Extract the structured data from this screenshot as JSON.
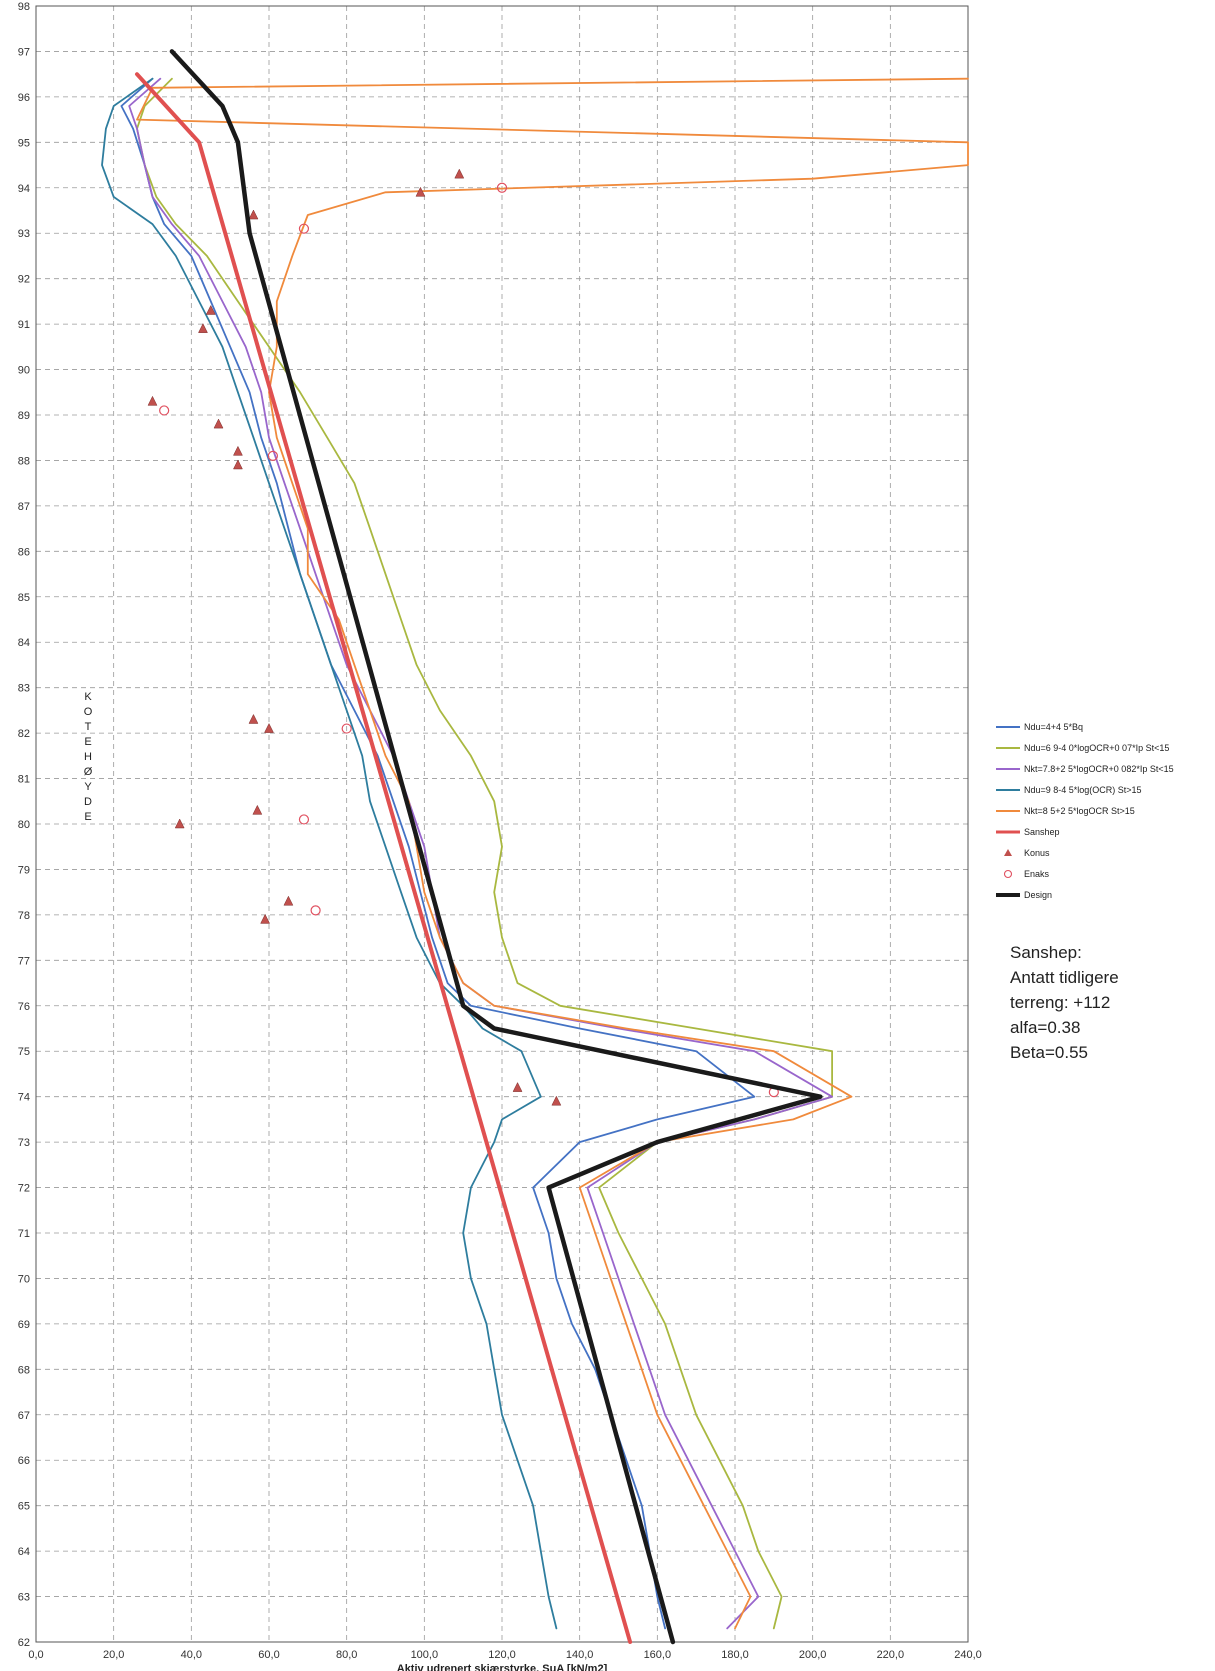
{
  "chart_data": {
    "type": "line",
    "title": "",
    "xlabel": "Aktiv udrenert skjærstyrke, SuA     [kN/m2]",
    "ylabel": "KOTEHØYDE",
    "xlim": [
      0,
      240
    ],
    "ylim": [
      62,
      98
    ],
    "x_ticks": [
      0,
      20,
      40,
      60,
      80,
      100,
      120,
      140,
      160,
      180,
      200,
      220,
      240
    ],
    "x_tick_labels": [
      "0,0",
      "20,0",
      "40,0",
      "60,0",
      "80,0",
      "100,0",
      "120,0",
      "140,0",
      "160,0",
      "180,0",
      "200,0",
      "220,0",
      "240,0"
    ],
    "y_ticks": [
      62,
      63,
      64,
      65,
      66,
      67,
      68,
      69,
      70,
      71,
      72,
      73,
      74,
      75,
      76,
      77,
      78,
      79,
      80,
      81,
      82,
      83,
      84,
      85,
      86,
      87,
      88,
      89,
      90,
      91,
      92,
      93,
      94,
      95,
      96,
      97,
      98
    ],
    "grid": true,
    "legend_position": "right",
    "series": [
      {
        "name": "Ndu=4+4 5*Bq",
        "color": "#4472c4",
        "marker": "none",
        "points": [
          [
            30,
            96.4
          ],
          [
            22,
            95.8
          ],
          [
            25,
            95.3
          ],
          [
            28,
            94.5
          ],
          [
            30,
            93.8
          ],
          [
            33,
            93.2
          ],
          [
            40,
            92.5
          ],
          [
            45,
            91.5
          ],
          [
            50,
            90.5
          ],
          [
            55,
            89.5
          ],
          [
            58,
            88.5
          ],
          [
            62,
            87.5
          ],
          [
            65,
            86.5
          ],
          [
            68,
            85.5
          ],
          [
            72,
            84.5
          ],
          [
            76,
            83.5
          ],
          [
            82,
            82.5
          ],
          [
            88,
            81.5
          ],
          [
            92,
            80.5
          ],
          [
            96,
            79.5
          ],
          [
            99,
            78.5
          ],
          [
            102,
            77.5
          ],
          [
            106,
            76.5
          ],
          [
            112,
            76.0
          ],
          [
            140,
            75.5
          ],
          [
            170,
            75.0
          ],
          [
            185,
            74.0
          ],
          [
            160,
            73.5
          ],
          [
            140,
            73.0
          ],
          [
            128,
            72.0
          ],
          [
            132,
            71.0
          ],
          [
            134,
            70.0
          ],
          [
            138,
            69.0
          ],
          [
            144,
            68.0
          ],
          [
            148,
            67.0
          ],
          [
            152,
            66.0
          ],
          [
            156,
            65.0
          ],
          [
            158,
            64.0
          ],
          [
            160,
            63.0
          ],
          [
            162,
            62.3
          ]
        ]
      },
      {
        "name": "Ndu=6 9-4 0*logOCR+0 07*Ip     St<15",
        "color": "#a9b840",
        "marker": "none",
        "points": [
          [
            35,
            96.4
          ],
          [
            28,
            95.8
          ],
          [
            26,
            95.3
          ],
          [
            28,
            94.5
          ],
          [
            31,
            93.8
          ],
          [
            36,
            93.2
          ],
          [
            44,
            92.5
          ],
          [
            52,
            91.5
          ],
          [
            60,
            90.5
          ],
          [
            68,
            89.5
          ],
          [
            75,
            88.5
          ],
          [
            82,
            87.5
          ],
          [
            86,
            86.5
          ],
          [
            90,
            85.5
          ],
          [
            94,
            84.5
          ],
          [
            98,
            83.5
          ],
          [
            104,
            82.5
          ],
          [
            112,
            81.5
          ],
          [
            118,
            80.5
          ],
          [
            120,
            79.5
          ],
          [
            118,
            78.5
          ],
          [
            120,
            77.5
          ],
          [
            124,
            76.5
          ],
          [
            135,
            76.0
          ],
          [
            170,
            75.5
          ],
          [
            205,
            75.0
          ],
          [
            205,
            74.0
          ],
          [
            185,
            73.5
          ],
          [
            160,
            73.0
          ],
          [
            145,
            72.0
          ],
          [
            150,
            71.0
          ],
          [
            156,
            70.0
          ],
          [
            162,
            69.0
          ],
          [
            166,
            68.0
          ],
          [
            170,
            67.0
          ],
          [
            176,
            66.0
          ],
          [
            182,
            65.0
          ],
          [
            186,
            64.0
          ],
          [
            192,
            63.0
          ],
          [
            190,
            62.3
          ]
        ]
      },
      {
        "name": "Nkt=7.8+2 5*logOCR+0 082*Ip     St<15",
        "color": "#9966cc",
        "marker": "none",
        "points": [
          [
            32,
            96.4
          ],
          [
            24,
            95.8
          ],
          [
            26,
            95.3
          ],
          [
            28,
            94.5
          ],
          [
            30,
            93.8
          ],
          [
            35,
            93.2
          ],
          [
            42,
            92.5
          ],
          [
            48,
            91.5
          ],
          [
            54,
            90.5
          ],
          [
            58,
            89.5
          ],
          [
            60,
            88.5
          ],
          [
            64,
            87.5
          ],
          [
            68,
            86.5
          ],
          [
            72,
            85.5
          ],
          [
            76,
            84.5
          ],
          [
            80,
            83.5
          ],
          [
            86,
            82.5
          ],
          [
            92,
            81.5
          ],
          [
            96,
            80.5
          ],
          [
            100,
            79.5
          ],
          [
            102,
            78.5
          ],
          [
            104,
            77.5
          ],
          [
            110,
            76.5
          ],
          [
            118,
            76.0
          ],
          [
            150,
            75.5
          ],
          [
            185,
            75.0
          ],
          [
            205,
            74.0
          ],
          [
            185,
            73.5
          ],
          [
            160,
            73.0
          ],
          [
            142,
            72.0
          ],
          [
            146,
            71.0
          ],
          [
            150,
            70.0
          ],
          [
            154,
            69.0
          ],
          [
            158,
            68.0
          ],
          [
            162,
            67.0
          ],
          [
            168,
            66.0
          ],
          [
            174,
            65.0
          ],
          [
            180,
            64.0
          ],
          [
            186,
            63.0
          ],
          [
            178,
            62.3
          ]
        ]
      },
      {
        "name": "Ndu=9 8-4 5*log(OCR)     St>15",
        "color": "#2e7d9e",
        "marker": "none",
        "points": [
          [
            30,
            96.4
          ],
          [
            20,
            95.8
          ],
          [
            18,
            95.3
          ],
          [
            17,
            94.5
          ],
          [
            20,
            93.8
          ],
          [
            30,
            93.2
          ],
          [
            36,
            92.5
          ],
          [
            42,
            91.5
          ],
          [
            48,
            90.5
          ],
          [
            52,
            89.5
          ],
          [
            56,
            88.5
          ],
          [
            60,
            87.5
          ],
          [
            64,
            86.5
          ],
          [
            68,
            85.5
          ],
          [
            72,
            84.5
          ],
          [
            76,
            83.5
          ],
          [
            80,
            82.5
          ],
          [
            84,
            81.5
          ],
          [
            86,
            80.5
          ],
          [
            90,
            79.5
          ],
          [
            94,
            78.5
          ],
          [
            98,
            77.5
          ],
          [
            104,
            76.5
          ],
          [
            110,
            76.0
          ],
          [
            115,
            75.5
          ],
          [
            125,
            75.0
          ],
          [
            130,
            74.0
          ],
          [
            120,
            73.5
          ],
          [
            118,
            73.0
          ],
          [
            112,
            72.0
          ],
          [
            110,
            71.0
          ],
          [
            112,
            70.0
          ],
          [
            116,
            69.0
          ],
          [
            118,
            68.0
          ],
          [
            120,
            67.0
          ],
          [
            124,
            66.0
          ],
          [
            128,
            65.0
          ],
          [
            130,
            64.0
          ],
          [
            132,
            63.0
          ],
          [
            134,
            62.3
          ]
        ]
      },
      {
        "name": "Nkt=8 5+2 5*logOCR     St>15",
        "color": "#f08a3c",
        "marker": "none",
        "points": [
          [
            240,
            96.4
          ],
          [
            30,
            96.2
          ],
          [
            26,
            95.5
          ],
          [
            240,
            95.0
          ],
          [
            240,
            94.5
          ],
          [
            200,
            94.2
          ],
          [
            90,
            93.9
          ],
          [
            70,
            93.4
          ],
          [
            66,
            92.5
          ],
          [
            62,
            91.5
          ],
          [
            62,
            90.5
          ],
          [
            60,
            89.5
          ],
          [
            62,
            88.5
          ],
          [
            66,
            87.5
          ],
          [
            70,
            86.5
          ],
          [
            70,
            85.5
          ],
          [
            78,
            84.5
          ],
          [
            82,
            83.5
          ],
          [
            86,
            82.5
          ],
          [
            90,
            81.5
          ],
          [
            96,
            80.5
          ],
          [
            98,
            79.5
          ],
          [
            100,
            78.5
          ],
          [
            104,
            77.5
          ],
          [
            110,
            76.5
          ],
          [
            118,
            76.0
          ],
          [
            152,
            75.5
          ],
          [
            190,
            75.0
          ],
          [
            210,
            74.0
          ],
          [
            195,
            73.5
          ],
          [
            160,
            73.0
          ],
          [
            140,
            72.0
          ],
          [
            144,
            71.0
          ],
          [
            148,
            70.0
          ],
          [
            152,
            69.0
          ],
          [
            156,
            68.0
          ],
          [
            160,
            67.0
          ],
          [
            166,
            66.0
          ],
          [
            172,
            65.0
          ],
          [
            178,
            64.0
          ],
          [
            184,
            63.0
          ],
          [
            180,
            62.3
          ]
        ]
      },
      {
        "name": "Sanshep",
        "color": "#e05050",
        "marker": "none",
        "points": [
          [
            26,
            96.5
          ],
          [
            42,
            95.0
          ],
          [
            153,
            62.0
          ]
        ]
      },
      {
        "name": "Konus",
        "color": "#c0504d",
        "marker": "triangle",
        "points": [
          [
            56,
            93.4
          ],
          [
            45,
            91.3
          ],
          [
            43,
            90.9
          ],
          [
            30,
            89.3
          ],
          [
            47,
            88.8
          ],
          [
            52,
            88.2
          ],
          [
            52,
            87.9
          ],
          [
            56,
            82.3
          ],
          [
            60,
            82.1
          ],
          [
            37,
            80.0
          ],
          [
            57,
            80.3
          ],
          [
            65,
            78.3
          ],
          [
            59,
            77.9
          ],
          [
            99,
            93.9
          ],
          [
            109,
            94.3
          ],
          [
            124,
            74.2
          ],
          [
            134,
            73.9
          ]
        ]
      },
      {
        "name": "Enaks",
        "color": "#e05060",
        "marker": "circle",
        "points": [
          [
            120,
            94.0
          ],
          [
            69,
            93.1
          ],
          [
            33,
            89.1
          ],
          [
            61,
            88.1
          ],
          [
            80,
            82.1
          ],
          [
            69,
            80.1
          ],
          [
            72,
            78.1
          ],
          [
            190,
            74.1
          ]
        ]
      },
      {
        "name": "Design",
        "color": "#1a1a1a",
        "marker": "none",
        "points": [
          [
            35,
            97.0
          ],
          [
            48,
            95.8
          ],
          [
            52,
            95.0
          ],
          [
            55,
            93.0
          ],
          [
            110,
            76.0
          ],
          [
            118,
            75.5
          ],
          [
            202,
            74.0
          ],
          [
            160,
            73.0
          ],
          [
            132,
            72.0
          ],
          [
            164,
            62.0
          ]
        ]
      }
    ],
    "annotation": [
      "Sanshep:",
      "Antatt tidligere",
      "terreng: +112",
      "alfa=0.38",
      "Beta=0.55"
    ]
  }
}
